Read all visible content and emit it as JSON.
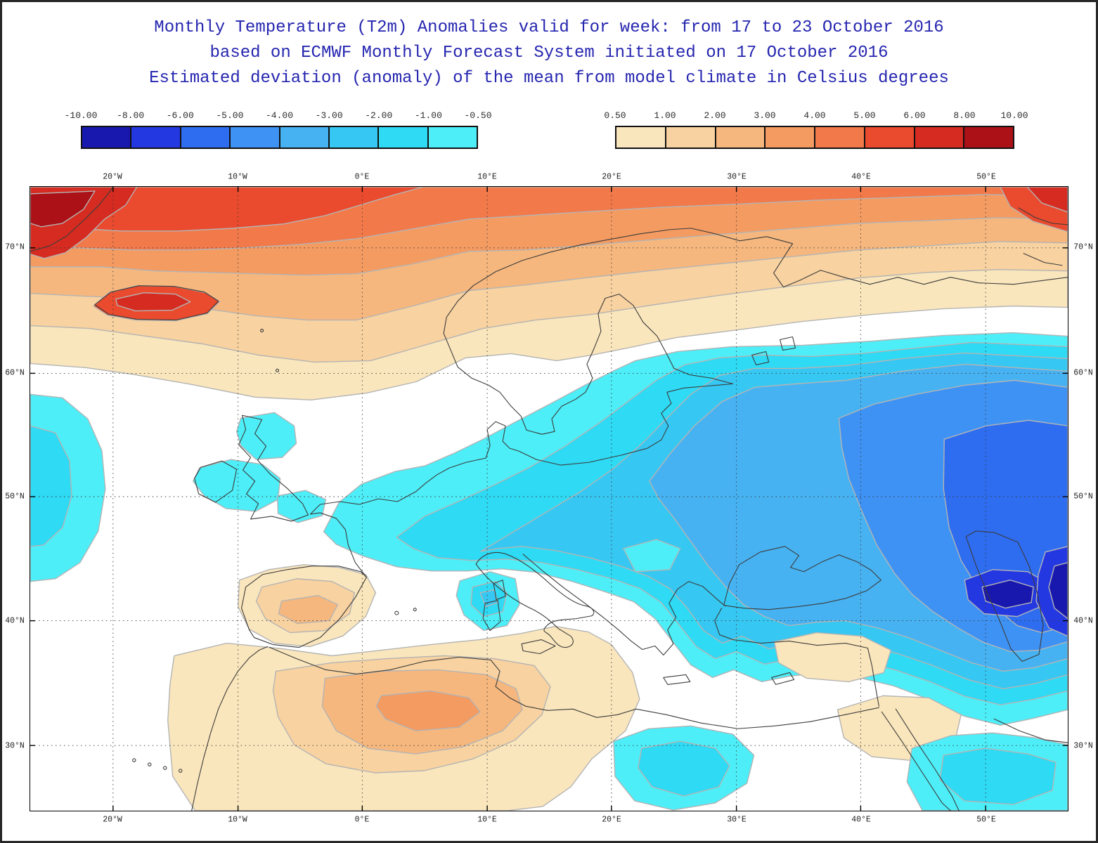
{
  "title": {
    "line1": "Monthly Temperature (T2m) Anomalies valid for week: from 17 to 23 October 2016",
    "line2": "based on ECMWF Monthly Forecast System initiated on 17 October 2016",
    "line3": "Estimated deviation (anomaly) of the mean from model climate in Celsius degrees",
    "color": "#2626b0"
  },
  "legend": {
    "negative": {
      "labels": [
        "-10.00",
        "-8.00",
        "-6.00",
        "-5.00",
        "-4.00",
        "-3.00",
        "-2.00",
        "-1.00",
        "-0.50"
      ],
      "colors": [
        "#1818ae",
        "#2438e2",
        "#2e6cf0",
        "#3e92f4",
        "#47b2f2",
        "#36c8f2",
        "#2edaf4",
        "#4deef8"
      ]
    },
    "positive": {
      "labels": [
        "0.50",
        "1.00",
        "2.00",
        "3.00",
        "4.00",
        "5.00",
        "6.00",
        "8.00",
        "10.00"
      ],
      "colors": [
        "#fae6bc",
        "#f8d2a0",
        "#f6b77e",
        "#f49b62",
        "#f2794a",
        "#ea4a2e",
        "#d62b20",
        "#ab1116"
      ]
    }
  },
  "map": {
    "x_labels": [
      "20°W",
      "10°W",
      "0°E",
      "10°E",
      "20°E",
      "30°E",
      "40°E",
      "50°E"
    ],
    "y_labels": [
      "70°N",
      "60°N",
      "50°N",
      "40°N",
      "30°N"
    ]
  },
  "chart_data": {
    "type": "heatmap",
    "title": "Monthly Temperature (T2m) Anomalies, week 17 to 23 October 2016",
    "units": "Celsius degrees (deviation from model climate)",
    "extent": {
      "lon_min": "20°W",
      "lon_max": "50°E",
      "lat_min": "30°N",
      "lat_max": "70°N"
    },
    "color_scale": {
      "negative_breaks": [
        -10,
        -8,
        -6,
        -5,
        -4,
        -3,
        -2,
        -1,
        -0.5
      ],
      "positive_breaks": [
        0.5,
        1,
        2,
        3,
        4,
        5,
        6,
        8,
        10
      ]
    },
    "features": [
      {
        "region": "North Atlantic / Arctic band, Greenland edge and Iceland",
        "anomaly_c": "+3 to +10"
      },
      {
        "region": "Northern Scandinavia and Barents Sea coast",
        "anomaly_c": "+1 to +4"
      },
      {
        "region": "British Isles and nearby Atlantic",
        "anomaly_c": "-0.5 to -1"
      },
      {
        "region": "Central Europe (France, Germany, Alps, Balkans)",
        "anomaly_c": "-1 to -3"
      },
      {
        "region": "Eastern Europe and western Russia",
        "anomaly_c": "-2 to -5"
      },
      {
        "region": "Caucasus / Caspian region",
        "anomaly_c": "-6 to -10"
      },
      {
        "region": "Iberia and northwest Africa",
        "anomaly_c": "+0.5 to +4"
      },
      {
        "region": "Southeast Turkey / Middle East patches",
        "anomaly_c": "+0.5 to +1"
      },
      {
        "region": "Red Sea / Persian Gulf area",
        "anomaly_c": "-0.5 to -2"
      }
    ]
  }
}
